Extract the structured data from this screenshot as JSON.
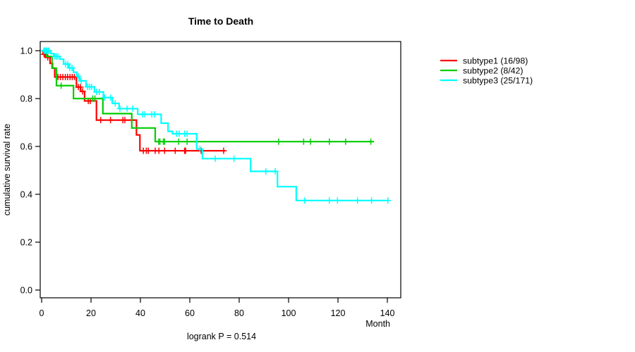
{
  "title": "Time to Death",
  "xlabel": "Month",
  "ylabel": "cumulative survival rate",
  "footnote": "logrank P = 0.514",
  "legend": {
    "position": "right",
    "items": [
      {
        "label": "subtype1 (16/98)",
        "color": "#ff0000"
      },
      {
        "label": "subtype2 (8/42)",
        "color": "#00cd00"
      },
      {
        "label": "subtype3 (25/171)",
        "color": "#00ffff"
      }
    ]
  },
  "chart_data": {
    "type": "line",
    "subtype": "kaplan-meier-step",
    "title": "Time to Death",
    "xlabel": "Month",
    "ylabel": "cumulative survival rate",
    "annotation": "logrank P = 0.514",
    "xlim": [
      0,
      140
    ],
    "ylim": [
      0.0,
      1.0
    ],
    "x_ticks": [
      0,
      20,
      40,
      60,
      80,
      100,
      120,
      140
    ],
    "y_ticks": [
      "0.0",
      "0.2",
      "0.4",
      "0.6",
      "0.8",
      "1.0"
    ],
    "grid": false,
    "legend_position": "right-outside",
    "series": [
      {
        "name": "subtype1 (16/98)",
        "color": "#ff0000",
        "events": 16,
        "n": 98,
        "end_month": 74.3,
        "steps": [
          [
            0,
            1.0
          ],
          [
            0.6,
            0.985
          ],
          [
            1.5,
            0.972
          ],
          [
            3.4,
            0.947
          ],
          [
            4.4,
            0.927
          ],
          [
            5.3,
            0.89
          ],
          [
            14.1,
            0.848
          ],
          [
            15.8,
            0.83
          ],
          [
            17.4,
            0.79
          ],
          [
            22.2,
            0.71
          ],
          [
            38.4,
            0.648
          ],
          [
            39.8,
            0.582
          ]
        ],
        "censor_months": [
          1.0,
          2.5,
          6.6,
          7.6,
          8.6,
          9.6,
          10.5,
          11.5,
          12.4,
          13.3,
          14.9,
          15.7,
          16.6,
          18.9,
          19.7,
          23.9,
          27.9,
          32.9,
          33.7,
          41.2,
          42.4,
          43.2,
          46.0,
          47.5,
          49.8,
          54.1,
          57.9,
          58.3,
          64.6,
          73.7
        ]
      },
      {
        "name": "subtype2 (8/42)",
        "color": "#00cd00",
        "events": 8,
        "n": 42,
        "end_month": 134.6,
        "steps": [
          [
            0,
            1.0
          ],
          [
            2.1,
            0.976
          ],
          [
            4.2,
            0.927
          ],
          [
            6.0,
            0.854
          ],
          [
            12.9,
            0.8
          ],
          [
            24.8,
            0.737
          ],
          [
            36.5,
            0.677
          ],
          [
            46.0,
            0.62
          ]
        ],
        "censor_months": [
          7.9,
          20.7,
          21.6,
          47.4,
          47.9,
          49.3,
          49.8,
          55.5,
          58.9,
          96.0,
          106.1,
          108.9,
          116.5,
          123.1,
          133.3
        ]
      },
      {
        "name": "subtype3 (25/171)",
        "color": "#00ffff",
        "events": 25,
        "n": 171,
        "end_month": 140.3,
        "steps": [
          [
            0,
            1.0
          ],
          [
            3.7,
            0.988
          ],
          [
            4.9,
            0.976
          ],
          [
            7.4,
            0.964
          ],
          [
            8.9,
            0.944
          ],
          [
            11.0,
            0.928
          ],
          [
            12.9,
            0.91
          ],
          [
            14.3,
            0.893
          ],
          [
            15.4,
            0.874
          ],
          [
            18.0,
            0.849
          ],
          [
            21.4,
            0.828
          ],
          [
            25.0,
            0.804
          ],
          [
            28.6,
            0.78
          ],
          [
            31.4,
            0.758
          ],
          [
            38.9,
            0.734
          ],
          [
            48.4,
            0.697
          ],
          [
            51.2,
            0.663
          ],
          [
            53.0,
            0.653
          ],
          [
            62.8,
            0.589
          ],
          [
            65.1,
            0.549
          ],
          [
            84.6,
            0.496
          ],
          [
            95.5,
            0.432
          ],
          [
            103.1,
            0.374
          ]
        ],
        "censor_months": [
          0.9,
          1.3,
          1.7,
          2.1,
          2.6,
          3.0,
          5.4,
          6.0,
          6.6,
          9.7,
          10.6,
          11.4,
          12.3,
          14.9,
          16.0,
          18.6,
          19.4,
          20.2,
          22.2,
          23.4,
          25.5,
          27.9,
          29.8,
          31.7,
          34.6,
          36.9,
          40.9,
          41.8,
          44.6,
          45.7,
          54.6,
          55.7,
          57.9,
          58.9,
          64.1,
          70.3,
          77.9,
          90.8,
          94.6,
          106.5,
          116.5,
          119.8,
          127.9,
          133.6,
          140.2
        ]
      }
    ]
  }
}
